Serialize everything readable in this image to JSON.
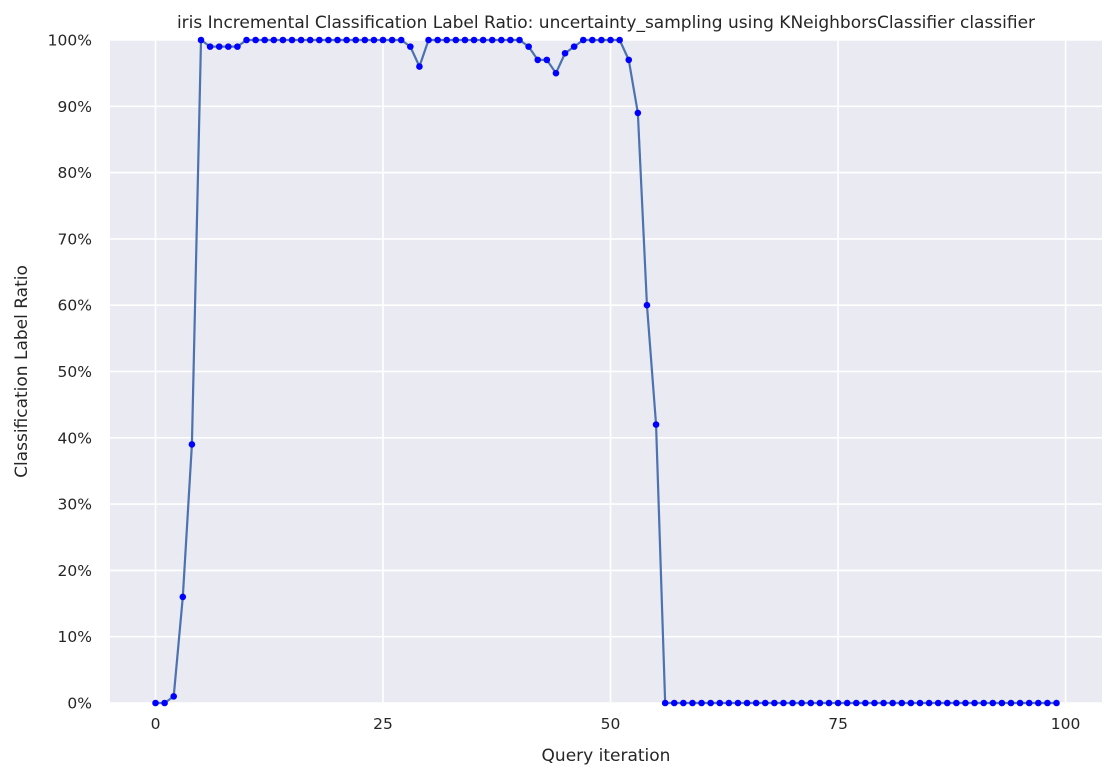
{
  "chart_data": {
    "type": "line",
    "title": "iris Incremental Classification Label Ratio: uncertainty_sampling using KNeighborsClassifier classifier",
    "xlabel": "Query iteration",
    "ylabel": "Classification Label Ratio",
    "xlim": [
      -5,
      104
    ],
    "ylim": [
      0,
      100
    ],
    "x_ticks": [
      0,
      25,
      50,
      75,
      100
    ],
    "y_ticks": [
      0,
      10,
      20,
      30,
      40,
      50,
      60,
      70,
      80,
      90,
      100
    ],
    "y_tick_suffix": "%",
    "grid": true,
    "legend": "none",
    "series": [
      {
        "line_color": "#4c72b0",
        "marker_color": "#0000ff",
        "x": [
          0,
          1,
          2,
          3,
          4,
          5,
          6,
          7,
          8,
          9,
          10,
          11,
          12,
          13,
          14,
          15,
          16,
          17,
          18,
          19,
          20,
          21,
          22,
          23,
          24,
          25,
          26,
          27,
          28,
          29,
          30,
          31,
          32,
          33,
          34,
          35,
          36,
          37,
          38,
          39,
          40,
          41,
          42,
          43,
          44,
          45,
          46,
          47,
          48,
          49,
          50,
          51,
          52,
          53,
          54,
          55,
          56,
          57,
          58,
          59,
          60,
          61,
          62,
          63,
          64,
          65,
          66,
          67,
          68,
          69,
          70,
          71,
          72,
          73,
          74,
          75,
          76,
          77,
          78,
          79,
          80,
          81,
          82,
          83,
          84,
          85,
          86,
          87,
          88,
          89,
          90,
          91,
          92,
          93,
          94,
          95,
          96,
          97,
          98,
          99
        ],
        "values": [
          0,
          0,
          1,
          16,
          39,
          100,
          99,
          99,
          99,
          99,
          100,
          100,
          100,
          100,
          100,
          100,
          100,
          100,
          100,
          100,
          100,
          100,
          100,
          100,
          100,
          100,
          100,
          100,
          99,
          96,
          100,
          100,
          100,
          100,
          100,
          100,
          100,
          100,
          100,
          100,
          100,
          99,
          97,
          97,
          95,
          98,
          99,
          100,
          100,
          100,
          100,
          100,
          97,
          89,
          60,
          42,
          0,
          0,
          0,
          0,
          0,
          0,
          0,
          0,
          0,
          0,
          0,
          0,
          0,
          0,
          0,
          0,
          0,
          0,
          0,
          0,
          0,
          0,
          0,
          0,
          0,
          0,
          0,
          0,
          0,
          0,
          0,
          0,
          0,
          0,
          0,
          0,
          0,
          0,
          0,
          0,
          0,
          0,
          0,
          0
        ]
      }
    ]
  }
}
